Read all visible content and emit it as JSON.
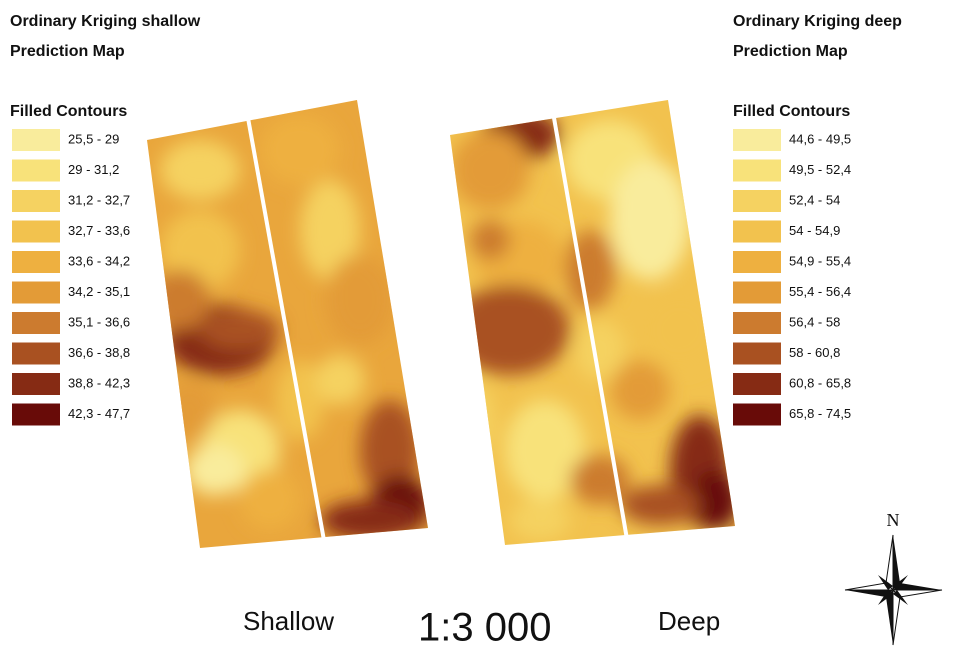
{
  "left": {
    "title": "Ordinary Kriging shallow",
    "subtitle": "Prediction Map",
    "legend_title": "Filled Contours",
    "legend": [
      {
        "label": "25,5 - 29",
        "color": "#f9ec9c"
      },
      {
        "label": "29 - 31,2",
        "color": "#f8e27a"
      },
      {
        "label": "31,2 - 32,7",
        "color": "#f5d261"
      },
      {
        "label": "32,7 - 33,6",
        "color": "#f2c24e"
      },
      {
        "label": "33,6 - 34,2",
        "color": "#eeb040"
      },
      {
        "label": "34,2 - 35,1",
        "color": "#e39b37"
      },
      {
        "label": "35,1 - 36,6",
        "color": "#cc7b2f"
      },
      {
        "label": "36,6 - 38,8",
        "color": "#a95121"
      },
      {
        "label": "38,8 - 42,3",
        "color": "#862b14"
      },
      {
        "label": "42,3 - 47,7",
        "color": "#680b08"
      }
    ]
  },
  "right": {
    "title": "Ordinary Kriging deep",
    "subtitle": "Prediction Map",
    "legend_title": "Filled Contours",
    "legend": [
      {
        "label": "44,6 - 49,5",
        "color": "#f9ec9c"
      },
      {
        "label": "49,5 - 52,4",
        "color": "#f8e27a"
      },
      {
        "label": "52,4 - 54",
        "color": "#f5d261"
      },
      {
        "label": "54 - 54,9",
        "color": "#f2c24e"
      },
      {
        "label": "54,9 - 55,4",
        "color": "#eeb040"
      },
      {
        "label": "55,4 - 56,4",
        "color": "#e39b37"
      },
      {
        "label": "56,4 - 58",
        "color": "#cc7b2f"
      },
      {
        "label": "58 - 60,8",
        "color": "#a95121"
      },
      {
        "label": "60,8 - 65,8",
        "color": "#862b14"
      },
      {
        "label": "65,8 - 74,5",
        "color": "#680b08"
      }
    ]
  },
  "compass": "N",
  "labels": {
    "shallow": "Shallow",
    "scale": "1:3 000",
    "deep": "Deep"
  }
}
